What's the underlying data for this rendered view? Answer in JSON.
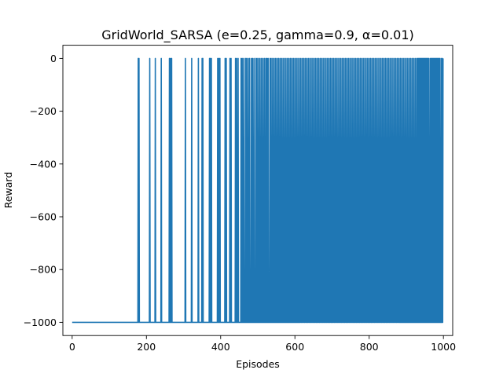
{
  "chart_data": {
    "type": "line",
    "title": "GridWorld_SARSA (e=0.25, gamma=0.9, α=0.01)",
    "xlabel": "Episodes",
    "ylabel": "Reward",
    "xlim": [
      -25,
      1025
    ],
    "ylim": [
      -1050,
      50
    ],
    "xticks": [
      0,
      200,
      400,
      600,
      800,
      1000
    ],
    "xtick_labels": [
      "0",
      "200",
      "400",
      "600",
      "800",
      "1000"
    ],
    "yticks": [
      0,
      -200,
      -400,
      -600,
      -800,
      -1000
    ],
    "ytick_labels": [
      "0",
      "−200",
      "−400",
      "−600",
      "−800",
      "−1000"
    ],
    "grid": false,
    "legend": false,
    "series_color": "#1f77b4",
    "n_episodes": 1000,
    "low_value": -1000,
    "high_value": 0,
    "success_episodes": [
      178,
      180,
      209,
      224,
      240,
      262,
      265,
      268,
      305,
      322,
      340,
      350,
      352,
      370,
      372,
      375,
      392,
      395,
      398,
      412,
      415,
      425,
      428,
      440,
      443,
      447,
      455,
      458,
      462,
      467,
      470,
      474,
      478,
      483,
      486,
      490,
      495,
      498,
      502,
      506,
      510,
      514,
      518,
      522,
      525,
      528,
      533,
      536,
      540,
      544,
      548,
      552,
      556,
      560,
      564,
      568,
      572,
      576,
      580,
      584,
      588,
      592,
      596,
      600,
      604,
      608,
      612,
      616,
      620,
      624,
      628,
      632,
      636,
      640,
      644,
      648,
      652,
      656,
      660,
      664,
      668,
      672,
      676,
      680,
      684,
      688,
      692,
      696,
      700,
      704,
      708,
      712,
      716,
      720,
      724,
      728,
      732,
      736,
      740,
      744,
      748,
      752,
      756,
      760,
      764,
      768,
      772,
      776,
      780,
      784,
      788,
      792,
      796,
      800,
      804,
      808,
      812,
      816,
      820,
      824,
      828,
      832,
      836,
      840,
      844,
      848,
      852,
      856,
      860,
      864,
      868,
      872,
      876,
      880,
      884,
      888,
      892,
      896,
      900,
      904,
      908,
      912,
      916,
      920,
      924,
      928,
      931,
      933,
      935,
      937,
      939,
      941,
      943,
      945,
      947,
      949,
      951,
      953,
      955,
      957,
      959,
      961,
      965,
      967,
      969,
      971,
      973,
      975,
      977,
      979,
      981,
      983,
      985,
      987,
      989,
      991,
      995,
      997,
      999
    ]
  }
}
